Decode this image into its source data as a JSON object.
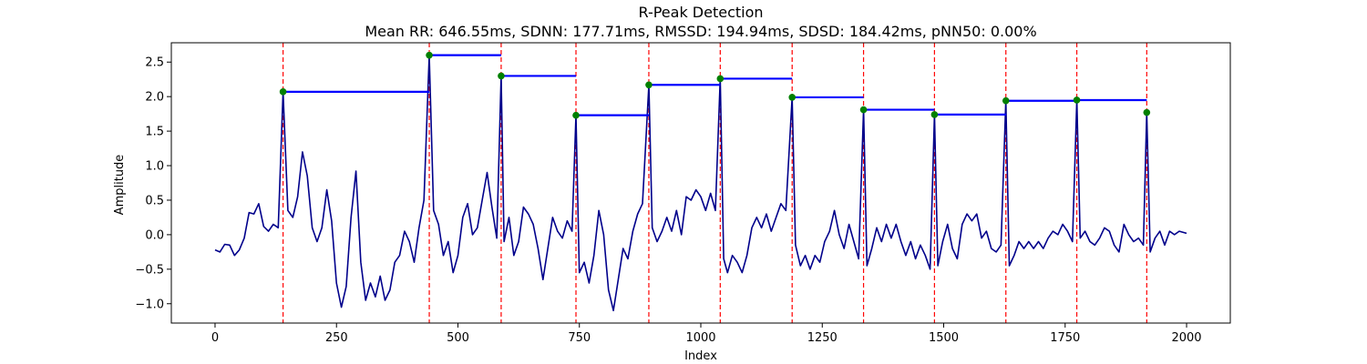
{
  "chart_data": {
    "type": "line",
    "title": "R-Peak Detection",
    "subtitle": "Mean RR: 646.55ms, SDNN: 177.71ms, RMSSD: 194.94ms, SDSD: 184.42ms, pNN50: 0.00%",
    "xlabel": "Index",
    "ylabel": "Amplitude",
    "xlim": [
      -90,
      2090
    ],
    "ylim": [
      -1.28,
      2.78
    ],
    "xticks": [
      0,
      250,
      500,
      750,
      1000,
      1250,
      1500,
      1750,
      2000
    ],
    "yticks": [
      -1.0,
      -0.5,
      0.0,
      0.5,
      1.0,
      1.5,
      2.0,
      2.5
    ],
    "xtick_labels": [
      "0",
      "250",
      "500",
      "750",
      "1000",
      "1250",
      "1500",
      "1750",
      "2000"
    ],
    "ytick_labels": [
      "−1.0",
      "−0.5",
      "0.0",
      "0.5",
      "1.0",
      "1.5",
      "2.0",
      "2.5"
    ],
    "grid": false,
    "colors": {
      "signal": "#00008b",
      "peak_line": "#ff0000",
      "rr_segment": "#0000ff",
      "peak_marker": "#008000",
      "axes": "#000000"
    },
    "signal": [
      [
        0,
        -0.22
      ],
      [
        10,
        -0.25
      ],
      [
        20,
        -0.14
      ],
      [
        30,
        -0.15
      ],
      [
        40,
        -0.3
      ],
      [
        50,
        -0.22
      ],
      [
        60,
        -0.05
      ],
      [
        70,
        0.32
      ],
      [
        80,
        0.3
      ],
      [
        90,
        0.45
      ],
      [
        100,
        0.12
      ],
      [
        110,
        0.05
      ],
      [
        120,
        0.15
      ],
      [
        130,
        0.1
      ],
      [
        140,
        2.07
      ],
      [
        150,
        0.35
      ],
      [
        160,
        0.25
      ],
      [
        170,
        0.55
      ],
      [
        180,
        1.2
      ],
      [
        190,
        0.85
      ],
      [
        200,
        0.1
      ],
      [
        210,
        -0.1
      ],
      [
        220,
        0.1
      ],
      [
        230,
        0.65
      ],
      [
        240,
        0.2
      ],
      [
        250,
        -0.7
      ],
      [
        260,
        -1.05
      ],
      [
        270,
        -0.75
      ],
      [
        280,
        0.25
      ],
      [
        290,
        0.92
      ],
      [
        300,
        -0.4
      ],
      [
        310,
        -0.95
      ],
      [
        320,
        -0.7
      ],
      [
        330,
        -0.9
      ],
      [
        340,
        -0.6
      ],
      [
        350,
        -0.95
      ],
      [
        360,
        -0.8
      ],
      [
        370,
        -0.4
      ],
      [
        380,
        -0.3
      ],
      [
        390,
        0.05
      ],
      [
        400,
        -0.1
      ],
      [
        410,
        -0.4
      ],
      [
        420,
        0.1
      ],
      [
        430,
        0.5
      ],
      [
        441,
        2.6
      ],
      [
        450,
        0.35
      ],
      [
        460,
        0.15
      ],
      [
        470,
        -0.3
      ],
      [
        480,
        -0.1
      ],
      [
        490,
        -0.55
      ],
      [
        500,
        -0.3
      ],
      [
        510,
        0.25
      ],
      [
        520,
        0.45
      ],
      [
        530,
        0.0
      ],
      [
        540,
        0.1
      ],
      [
        550,
        0.5
      ],
      [
        560,
        0.9
      ],
      [
        570,
        0.4
      ],
      [
        580,
        -0.05
      ],
      [
        589,
        2.3
      ],
      [
        595,
        -0.1
      ],
      [
        605,
        0.25
      ],
      [
        615,
        -0.3
      ],
      [
        625,
        -0.1
      ],
      [
        635,
        0.4
      ],
      [
        645,
        0.3
      ],
      [
        655,
        0.15
      ],
      [
        665,
        -0.2
      ],
      [
        675,
        -0.65
      ],
      [
        685,
        -0.2
      ],
      [
        695,
        0.25
      ],
      [
        705,
        0.05
      ],
      [
        715,
        -0.05
      ],
      [
        725,
        0.2
      ],
      [
        735,
        0.05
      ],
      [
        743,
        1.73
      ],
      [
        750,
        -0.55
      ],
      [
        760,
        -0.4
      ],
      [
        770,
        -0.7
      ],
      [
        780,
        -0.3
      ],
      [
        790,
        0.35
      ],
      [
        800,
        0.0
      ],
      [
        810,
        -0.8
      ],
      [
        820,
        -1.1
      ],
      [
        830,
        -0.65
      ],
      [
        840,
        -0.2
      ],
      [
        850,
        -0.35
      ],
      [
        860,
        0.05
      ],
      [
        870,
        0.3
      ],
      [
        880,
        0.45
      ],
      [
        893,
        2.17
      ],
      [
        900,
        0.1
      ],
      [
        910,
        -0.1
      ],
      [
        920,
        0.05
      ],
      [
        930,
        0.25
      ],
      [
        940,
        0.05
      ],
      [
        950,
        0.35
      ],
      [
        960,
        0.0
      ],
      [
        970,
        0.55
      ],
      [
        980,
        0.5
      ],
      [
        990,
        0.65
      ],
      [
        1000,
        0.55
      ],
      [
        1010,
        0.35
      ],
      [
        1020,
        0.6
      ],
      [
        1030,
        0.35
      ],
      [
        1040,
        2.26
      ],
      [
        1047,
        -0.35
      ],
      [
        1055,
        -0.55
      ],
      [
        1065,
        -0.3
      ],
      [
        1075,
        -0.4
      ],
      [
        1085,
        -0.55
      ],
      [
        1095,
        -0.3
      ],
      [
        1105,
        0.1
      ],
      [
        1115,
        0.25
      ],
      [
        1125,
        0.1
      ],
      [
        1135,
        0.3
      ],
      [
        1145,
        0.05
      ],
      [
        1155,
        0.25
      ],
      [
        1165,
        0.45
      ],
      [
        1175,
        0.35
      ],
      [
        1188,
        1.99
      ],
      [
        1195,
        -0.15
      ],
      [
        1205,
        -0.45
      ],
      [
        1215,
        -0.3
      ],
      [
        1225,
        -0.5
      ],
      [
        1235,
        -0.3
      ],
      [
        1245,
        -0.4
      ],
      [
        1255,
        -0.1
      ],
      [
        1265,
        0.05
      ],
      [
        1275,
        0.35
      ],
      [
        1285,
        0.0
      ],
      [
        1295,
        -0.2
      ],
      [
        1305,
        0.15
      ],
      [
        1315,
        -0.1
      ],
      [
        1325,
        -0.35
      ],
      [
        1335,
        1.81
      ],
      [
        1342,
        -0.45
      ],
      [
        1352,
        -0.2
      ],
      [
        1362,
        0.1
      ],
      [
        1372,
        -0.1
      ],
      [
        1382,
        0.15
      ],
      [
        1392,
        -0.05
      ],
      [
        1402,
        0.15
      ],
      [
        1412,
        -0.1
      ],
      [
        1422,
        -0.3
      ],
      [
        1432,
        -0.1
      ],
      [
        1442,
        -0.35
      ],
      [
        1452,
        -0.15
      ],
      [
        1462,
        -0.3
      ],
      [
        1472,
        -0.5
      ],
      [
        1481,
        1.74
      ],
      [
        1488,
        -0.45
      ],
      [
        1498,
        -0.1
      ],
      [
        1508,
        0.15
      ],
      [
        1518,
        -0.2
      ],
      [
        1528,
        -0.35
      ],
      [
        1538,
        0.15
      ],
      [
        1548,
        0.3
      ],
      [
        1558,
        0.2
      ],
      [
        1568,
        0.3
      ],
      [
        1578,
        -0.05
      ],
      [
        1588,
        0.05
      ],
      [
        1598,
        -0.2
      ],
      [
        1608,
        -0.25
      ],
      [
        1618,
        -0.15
      ],
      [
        1628,
        1.94
      ],
      [
        1635,
        -0.45
      ],
      [
        1645,
        -0.3
      ],
      [
        1655,
        -0.1
      ],
      [
        1665,
        -0.2
      ],
      [
        1675,
        -0.1
      ],
      [
        1685,
        -0.2
      ],
      [
        1695,
        -0.1
      ],
      [
        1705,
        -0.2
      ],
      [
        1715,
        -0.05
      ],
      [
        1725,
        0.05
      ],
      [
        1735,
        0.0
      ],
      [
        1745,
        0.15
      ],
      [
        1755,
        0.05
      ],
      [
        1765,
        -0.1
      ],
      [
        1774,
        1.95
      ],
      [
        1781,
        -0.05
      ],
      [
        1791,
        0.05
      ],
      [
        1801,
        -0.1
      ],
      [
        1811,
        -0.15
      ],
      [
        1821,
        -0.05
      ],
      [
        1831,
        0.1
      ],
      [
        1841,
        0.05
      ],
      [
        1851,
        -0.15
      ],
      [
        1861,
        -0.25
      ],
      [
        1871,
        0.15
      ],
      [
        1881,
        0.0
      ],
      [
        1891,
        -0.1
      ],
      [
        1901,
        -0.05
      ],
      [
        1911,
        -0.15
      ],
      [
        1918,
        1.77
      ],
      [
        1925,
        -0.25
      ],
      [
        1935,
        -0.05
      ],
      [
        1945,
        0.05
      ],
      [
        1955,
        -0.15
      ],
      [
        1965,
        0.05
      ],
      [
        1975,
        0.0
      ],
      [
        1985,
        0.05
      ],
      [
        2000,
        0.02
      ]
    ],
    "peaks": [
      {
        "x": 140,
        "y": 2.07
      },
      {
        "x": 441,
        "y": 2.6
      },
      {
        "x": 589,
        "y": 2.3
      },
      {
        "x": 743,
        "y": 1.73
      },
      {
        "x": 893,
        "y": 2.17
      },
      {
        "x": 1040,
        "y": 2.26
      },
      {
        "x": 1188,
        "y": 1.99
      },
      {
        "x": 1335,
        "y": 1.81
      },
      {
        "x": 1481,
        "y": 1.74
      },
      {
        "x": 1628,
        "y": 1.94
      },
      {
        "x": 1774,
        "y": 1.95
      },
      {
        "x": 1918,
        "y": 1.77
      }
    ],
    "rr_segments": [
      {
        "x0": 140,
        "x1": 441,
        "y": 2.07
      },
      {
        "x0": 441,
        "x1": 589,
        "y": 2.6
      },
      {
        "x0": 589,
        "x1": 743,
        "y": 2.3
      },
      {
        "x0": 743,
        "x1": 893,
        "y": 1.73
      },
      {
        "x0": 893,
        "x1": 1040,
        "y": 2.17
      },
      {
        "x0": 1040,
        "x1": 1188,
        "y": 2.26
      },
      {
        "x0": 1188,
        "x1": 1335,
        "y": 1.99
      },
      {
        "x0": 1335,
        "x1": 1481,
        "y": 1.81
      },
      {
        "x0": 1481,
        "x1": 1628,
        "y": 1.74
      },
      {
        "x0": 1628,
        "x1": 1774,
        "y": 1.94
      },
      {
        "x0": 1774,
        "x1": 1918,
        "y": 1.95
      }
    ]
  }
}
